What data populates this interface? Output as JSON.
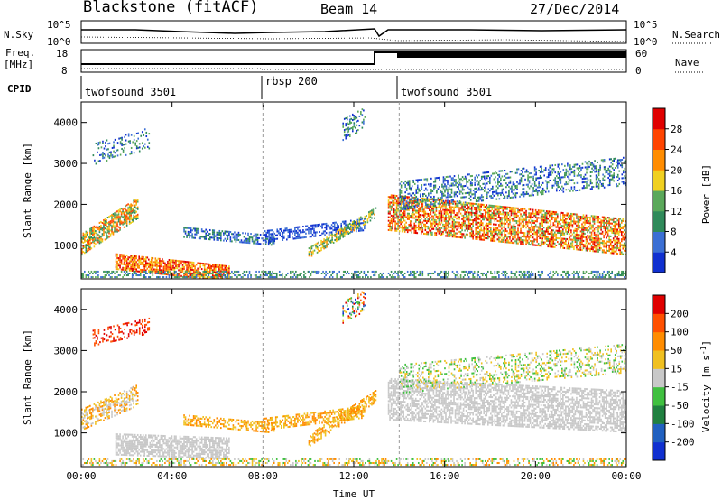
{
  "header": {
    "station": "Blackstone (fitACF)",
    "beam": "Beam 14",
    "date": "27/Dec/2014"
  },
  "nsky_panel": {
    "left_label": "N.Sky",
    "right_label": "N.Search",
    "left_ticks": [
      "10^5",
      "10^0"
    ],
    "right_ticks": [
      "10^5",
      "10^0"
    ]
  },
  "freq_panel": {
    "label_line1": "Freq.",
    "label_line2": "[MHz]",
    "left_ticks": [
      "18",
      "8"
    ],
    "right_ticks": [
      "60",
      "0"
    ],
    "right_label": "Nave",
    "freq_mhz": [
      {
        "start_hour": 0,
        "end_hour": 13.5,
        "value": 10
      },
      {
        "start_hour": 13.5,
        "end_hour": 24,
        "value": 18
      }
    ]
  },
  "cpid": {
    "label": "CPID",
    "programs": [
      {
        "name": "twofsound 3501",
        "start_hour": 0,
        "end_hour": 8
      },
      {
        "name": "rbsp 200",
        "start_hour": 8,
        "end_hour": 14
      },
      {
        "name": "twofsound 3501",
        "start_hour": 14,
        "end_hour": 24
      }
    ]
  },
  "chart_data": [
    {
      "type": "heatmap",
      "panel": "power",
      "ylabel": "Slant Range [km]",
      "ylim": [
        180,
        4500
      ],
      "yticks": [
        "1000",
        "2000",
        "3000",
        "4000"
      ],
      "xlim": [
        0,
        24
      ],
      "colorbar": {
        "label": "Power [dB]",
        "ticks": [
          "4",
          "8",
          "12",
          "16",
          "20",
          "24",
          "28"
        ],
        "colors": [
          "#1030d0",
          "#3b6fd4",
          "#2f8a5a",
          "#5aa85a",
          "#f0d020",
          "#ff8c00",
          "#ff4400",
          "#e00000"
        ]
      }
    },
    {
      "type": "heatmap",
      "panel": "velocity",
      "ylabel": "Slant Range [km]",
      "ylim": [
        180,
        4500
      ],
      "yticks": [
        "1000",
        "2000",
        "3000",
        "4000"
      ],
      "xlim": [
        0,
        24
      ],
      "xlabel": "Time UT",
      "xticks": [
        "00:00",
        "04:00",
        "08:00",
        "12:00",
        "16:00",
        "20:00",
        "00:00"
      ],
      "colorbar": {
        "label": "Velocity [m s",
        "label_sup": "-1",
        "label_close": "]",
        "ticks": [
          "200",
          "100",
          "50",
          "15",
          "-15",
          "-50",
          "-100",
          "-200"
        ],
        "colors": [
          "#1030d0",
          "#2060c0",
          "#208040",
          "#40c040",
          "#c8c8c8",
          "#f0c020",
          "#ff8c00",
          "#ff5000",
          "#e00000"
        ]
      }
    }
  ]
}
